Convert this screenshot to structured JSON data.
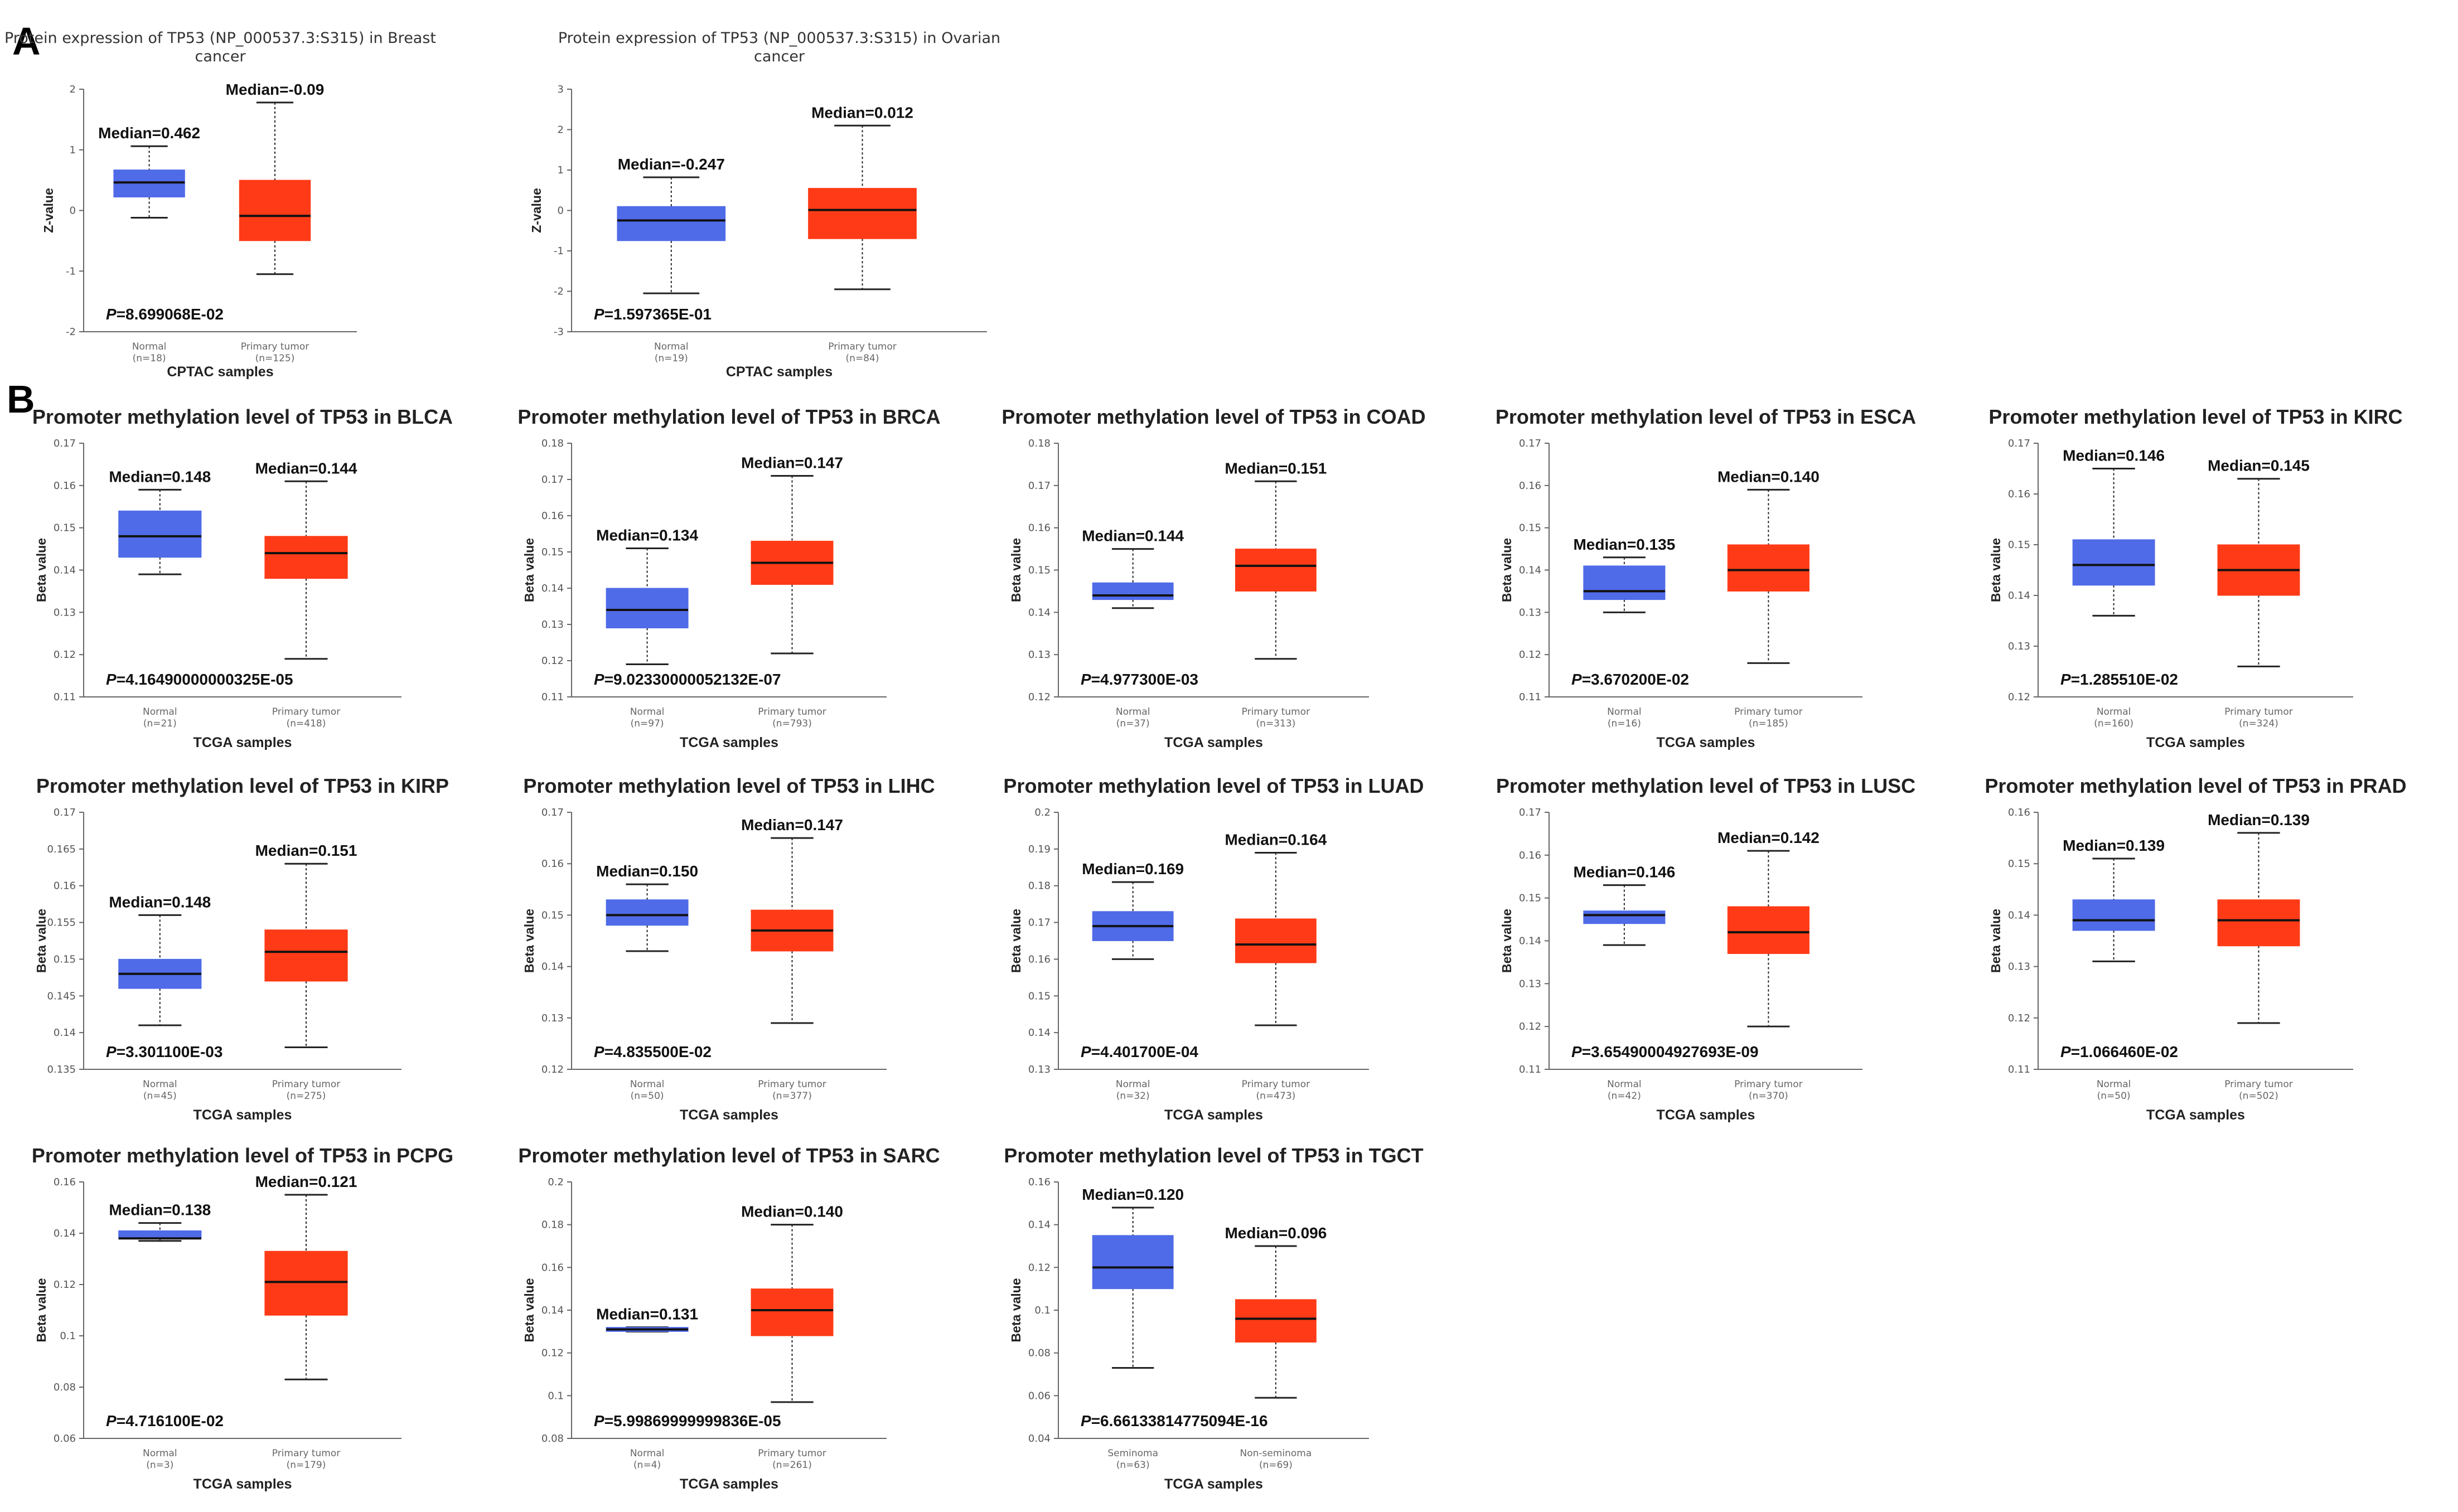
{
  "panels": [
    {
      "label": "A"
    },
    {
      "label": "B"
    }
  ],
  "chart_data": [
    {
      "type": "box",
      "panel": "A",
      "title": "Protein expression of TP53 (NP_000537.3:S315) in Breast cancer",
      "xlabel": "CPTAC samples",
      "ylabel": "Z-value",
      "ylim": [
        -2,
        2
      ],
      "yticks": [
        -2,
        -1,
        0,
        1,
        2
      ],
      "p_value": "8.699068E-02",
      "series": [
        {
          "name": "Normal",
          "n": "(n=18)",
          "color": "#4F6BE8",
          "median": 0.462,
          "median_label": "Median=0.462",
          "q1": 0.22,
          "q3": 0.67,
          "whisker_low": -0.12,
          "whisker_high": 1.06
        },
        {
          "name": "Primary tumor",
          "n": "(n=125)",
          "color": "#FF3B17",
          "median": -0.09,
          "median_label": "Median=-0.09",
          "q1": -0.5,
          "q3": 0.5,
          "whisker_low": -1.05,
          "whisker_high": 1.78
        }
      ]
    },
    {
      "type": "box",
      "panel": "A",
      "title": "Protein expression of TP53 (NP_000537.3:S315) in Ovarian cancer",
      "xlabel": "CPTAC samples",
      "ylabel": "Z-value",
      "ylim": [
        -3,
        3
      ],
      "yticks": [
        -3,
        -2,
        -1,
        0,
        1,
        2,
        3
      ],
      "p_value": "1.597365E-01",
      "series": [
        {
          "name": "Normal",
          "n": "(n=19)",
          "color": "#4F6BE8",
          "median": -0.247,
          "median_label": "Median=-0.247",
          "q1": -0.75,
          "q3": 0.1,
          "whisker_low": -2.05,
          "whisker_high": 0.82
        },
        {
          "name": "Primary tumor",
          "n": "(n=84)",
          "color": "#FF3B17",
          "median": 0.012,
          "median_label": "Median=0.012",
          "q1": -0.7,
          "q3": 0.55,
          "whisker_low": -1.95,
          "whisker_high": 2.1
        }
      ]
    },
    {
      "type": "box",
      "panel": "B",
      "title": "Promoter methylation level of TP53 in BLCA",
      "xlabel": "TCGA samples",
      "ylabel": "Beta value",
      "ylim": [
        0.11,
        0.17
      ],
      "yticks": [
        0.11,
        0.12,
        0.13,
        0.14,
        0.15,
        0.16,
        0.17
      ],
      "p_value": "4.16490000000325E-05",
      "series": [
        {
          "name": "Normal",
          "n": "(n=21)",
          "color": "#4F6BE8",
          "median": 0.148,
          "median_label": "Median=0.148",
          "q1": 0.143,
          "q3": 0.154,
          "whisker_low": 0.139,
          "whisker_high": 0.159
        },
        {
          "name": "Primary tumor",
          "n": "(n=418)",
          "color": "#FF3B17",
          "median": 0.144,
          "median_label": "Median=0.144",
          "q1": 0.138,
          "q3": 0.148,
          "whisker_low": 0.119,
          "whisker_high": 0.161
        }
      ]
    },
    {
      "type": "box",
      "panel": "B",
      "title": "Promoter methylation level of TP53 in BRCA",
      "xlabel": "TCGA samples",
      "ylabel": "Beta value",
      "ylim": [
        0.11,
        0.18
      ],
      "yticks": [
        0.11,
        0.12,
        0.13,
        0.14,
        0.15,
        0.16,
        0.17,
        0.18
      ],
      "p_value": "9.02330000052132E-07",
      "series": [
        {
          "name": "Normal",
          "n": "(n=97)",
          "color": "#4F6BE8",
          "median": 0.134,
          "median_label": "Median=0.134",
          "q1": 0.129,
          "q3": 0.14,
          "whisker_low": 0.119,
          "whisker_high": 0.151
        },
        {
          "name": "Primary tumor",
          "n": "(n=793)",
          "color": "#FF3B17",
          "median": 0.147,
          "median_label": "Median=0.147",
          "q1": 0.141,
          "q3": 0.153,
          "whisker_low": 0.122,
          "whisker_high": 0.171
        }
      ]
    },
    {
      "type": "box",
      "panel": "B",
      "title": "Promoter methylation level of TP53 in COAD",
      "xlabel": "TCGA samples",
      "ylabel": "Beta value",
      "ylim": [
        0.12,
        0.18
      ],
      "yticks": [
        0.12,
        0.13,
        0.14,
        0.15,
        0.16,
        0.17,
        0.18
      ],
      "p_value": "4.977300E-03",
      "series": [
        {
          "name": "Normal",
          "n": "(n=37)",
          "color": "#4F6BE8",
          "median": 0.144,
          "median_label": "Median=0.144",
          "q1": 0.143,
          "q3": 0.147,
          "whisker_low": 0.141,
          "whisker_high": 0.155
        },
        {
          "name": "Primary tumor",
          "n": "(n=313)",
          "color": "#FF3B17",
          "median": 0.151,
          "median_label": "Median=0.151",
          "q1": 0.145,
          "q3": 0.155,
          "whisker_low": 0.129,
          "whisker_high": 0.171
        }
      ]
    },
    {
      "type": "box",
      "panel": "B",
      "title": "Promoter methylation level of TP53 in ESCA",
      "xlabel": "TCGA samples",
      "ylabel": "Beta value",
      "ylim": [
        0.11,
        0.17
      ],
      "yticks": [
        0.11,
        0.12,
        0.13,
        0.14,
        0.15,
        0.16,
        0.17
      ],
      "p_value": "3.670200E-02",
      "series": [
        {
          "name": "Normal",
          "n": "(n=16)",
          "color": "#4F6BE8",
          "median": 0.135,
          "median_label": "Median=0.135",
          "q1": 0.133,
          "q3": 0.141,
          "whisker_low": 0.13,
          "whisker_high": 0.143
        },
        {
          "name": "Primary tumor",
          "n": "(n=185)",
          "color": "#FF3B17",
          "median": 0.14,
          "median_label": "Median=0.140",
          "q1": 0.135,
          "q3": 0.146,
          "whisker_low": 0.118,
          "whisker_high": 0.159
        }
      ]
    },
    {
      "type": "box",
      "panel": "B",
      "title": "Promoter methylation level of TP53 in KIRC",
      "xlabel": "TCGA samples",
      "ylabel": "Beta value",
      "ylim": [
        0.12,
        0.17
      ],
      "yticks": [
        0.12,
        0.13,
        0.14,
        0.15,
        0.16,
        0.17
      ],
      "p_value": "1.285510E-02",
      "series": [
        {
          "name": "Normal",
          "n": "(n=160)",
          "color": "#4F6BE8",
          "median": 0.146,
          "median_label": "Median=0.146",
          "q1": 0.142,
          "q3": 0.151,
          "whisker_low": 0.136,
          "whisker_high": 0.165
        },
        {
          "name": "Primary tumor",
          "n": "(n=324)",
          "color": "#FF3B17",
          "median": 0.145,
          "median_label": "Median=0.145",
          "q1": 0.14,
          "q3": 0.15,
          "whisker_low": 0.126,
          "whisker_high": 0.163
        }
      ]
    },
    {
      "type": "box",
      "panel": "B",
      "title": "Promoter methylation level of TP53 in KIRP",
      "xlabel": "TCGA samples",
      "ylabel": "Beta value",
      "ylim": [
        0.135,
        0.17
      ],
      "yticks": [
        0.135,
        0.14,
        0.145,
        0.15,
        0.155,
        0.16,
        0.165,
        0.17
      ],
      "p_value": "3.301100E-03",
      "series": [
        {
          "name": "Normal",
          "n": "(n=45)",
          "color": "#4F6BE8",
          "median": 0.148,
          "median_label": "Median=0.148",
          "q1": 0.146,
          "q3": 0.15,
          "whisker_low": 0.141,
          "whisker_high": 0.156
        },
        {
          "name": "Primary tumor",
          "n": "(n=275)",
          "color": "#FF3B17",
          "median": 0.151,
          "median_label": "Median=0.151",
          "q1": 0.147,
          "q3": 0.154,
          "whisker_low": 0.138,
          "whisker_high": 0.163
        }
      ]
    },
    {
      "type": "box",
      "panel": "B",
      "title": "Promoter methylation level of TP53 in LIHC",
      "xlabel": "TCGA samples",
      "ylabel": "Beta value",
      "ylim": [
        0.12,
        0.17
      ],
      "yticks": [
        0.12,
        0.13,
        0.14,
        0.15,
        0.16,
        0.17
      ],
      "p_value": "4.835500E-02",
      "series": [
        {
          "name": "Normal",
          "n": "(n=50)",
          "color": "#4F6BE8",
          "median": 0.15,
          "median_label": "Median=0.150",
          "q1": 0.148,
          "q3": 0.153,
          "whisker_low": 0.143,
          "whisker_high": 0.156
        },
        {
          "name": "Primary tumor",
          "n": "(n=377)",
          "color": "#FF3B17",
          "median": 0.147,
          "median_label": "Median=0.147",
          "q1": 0.143,
          "q3": 0.151,
          "whisker_low": 0.129,
          "whisker_high": 0.165
        }
      ]
    },
    {
      "type": "box",
      "panel": "B",
      "title": "Promoter methylation level of TP53 in LUAD",
      "xlabel": "TCGA samples",
      "ylabel": "Beta value",
      "ylim": [
        0.13,
        0.2
      ],
      "yticks": [
        0.13,
        0.14,
        0.15,
        0.16,
        0.17,
        0.18,
        0.19,
        0.2
      ],
      "p_value": "4.401700E-04",
      "series": [
        {
          "name": "Normal",
          "n": "(n=32)",
          "color": "#4F6BE8",
          "median": 0.169,
          "median_label": "Median=0.169",
          "q1": 0.165,
          "q3": 0.173,
          "whisker_low": 0.16,
          "whisker_high": 0.181
        },
        {
          "name": "Primary tumor",
          "n": "(n=473)",
          "color": "#FF3B17",
          "median": 0.164,
          "median_label": "Median=0.164",
          "q1": 0.159,
          "q3": 0.171,
          "whisker_low": 0.142,
          "whisker_high": 0.189
        }
      ]
    },
    {
      "type": "box",
      "panel": "B",
      "title": "Promoter methylation level of TP53 in LUSC",
      "xlabel": "TCGA samples",
      "ylabel": "Beta value",
      "ylim": [
        0.11,
        0.17
      ],
      "yticks": [
        0.11,
        0.12,
        0.13,
        0.14,
        0.15,
        0.16,
        0.17
      ],
      "p_value": "3.65490004927693E-09",
      "series": [
        {
          "name": "Normal",
          "n": "(n=42)",
          "color": "#4F6BE8",
          "median": 0.146,
          "median_label": "Median=0.146",
          "q1": 0.144,
          "q3": 0.147,
          "whisker_low": 0.139,
          "whisker_high": 0.153
        },
        {
          "name": "Primary tumor",
          "n": "(n=370)",
          "color": "#FF3B17",
          "median": 0.142,
          "median_label": "Median=0.142",
          "q1": 0.137,
          "q3": 0.148,
          "whisker_low": 0.12,
          "whisker_high": 0.161
        }
      ]
    },
    {
      "type": "box",
      "panel": "B",
      "title": "Promoter methylation level of TP53 in PRAD",
      "xlabel": "TCGA samples",
      "ylabel": "Beta value",
      "ylim": [
        0.11,
        0.16
      ],
      "yticks": [
        0.11,
        0.12,
        0.13,
        0.14,
        0.15,
        0.16
      ],
      "p_value": "1.066460E-02",
      "series": [
        {
          "name": "Normal",
          "n": "(n=50)",
          "color": "#4F6BE8",
          "median": 0.139,
          "median_label": "Median=0.139",
          "q1": 0.137,
          "q3": 0.143,
          "whisker_low": 0.131,
          "whisker_high": 0.151
        },
        {
          "name": "Primary tumor",
          "n": "(n=502)",
          "color": "#FF3B17",
          "median": 0.139,
          "median_label": "Median=0.139",
          "q1": 0.134,
          "q3": 0.143,
          "whisker_low": 0.119,
          "whisker_high": 0.156
        }
      ]
    },
    {
      "type": "box",
      "panel": "B",
      "title": "Promoter methylation level of TP53 in PCPG",
      "xlabel": "TCGA samples",
      "ylabel": "Beta value",
      "ylim": [
        0.06,
        0.16
      ],
      "yticks": [
        0.06,
        0.08,
        0.1,
        0.12,
        0.14,
        0.16
      ],
      "p_value": "4.716100E-02",
      "series": [
        {
          "name": "Normal",
          "n": "(n=3)",
          "color": "#4F6BE8",
          "median": 0.138,
          "median_label": "Median=0.138",
          "q1": 0.138,
          "q3": 0.141,
          "whisker_low": 0.137,
          "whisker_high": 0.144
        },
        {
          "name": "Primary tumor",
          "n": "(n=179)",
          "color": "#FF3B17",
          "median": 0.121,
          "median_label": "Median=0.121",
          "q1": 0.108,
          "q3": 0.133,
          "whisker_low": 0.083,
          "whisker_high": 0.155
        }
      ]
    },
    {
      "type": "box",
      "panel": "B",
      "title": "Promoter methylation level of TP53 in SARC",
      "xlabel": "TCGA samples",
      "ylabel": "Beta value",
      "ylim": [
        0.08,
        0.2
      ],
      "yticks": [
        0.08,
        0.1,
        0.12,
        0.14,
        0.16,
        0.18,
        0.2
      ],
      "p_value": "5.99869999999836E-05",
      "series": [
        {
          "name": "Normal",
          "n": "(n=4)",
          "color": "#4F6BE8",
          "median": 0.131,
          "median_label": "Median=0.131",
          "q1": 0.13,
          "q3": 0.132,
          "whisker_low": 0.13,
          "whisker_high": 0.132
        },
        {
          "name": "Primary tumor",
          "n": "(n=261)",
          "color": "#FF3B17",
          "median": 0.14,
          "median_label": "Median=0.140",
          "q1": 0.128,
          "q3": 0.15,
          "whisker_low": 0.097,
          "whisker_high": 0.18
        }
      ]
    },
    {
      "type": "box",
      "panel": "B",
      "title": "Promoter methylation level of TP53 in TGCT",
      "xlabel": "TCGA samples",
      "ylabel": "Beta value",
      "ylim": [
        0.04,
        0.16
      ],
      "yticks": [
        0.04,
        0.06,
        0.08,
        0.1,
        0.12,
        0.14,
        0.16
      ],
      "p_value": "6.66133814775094E-16",
      "series": [
        {
          "name": "Seminoma",
          "n": "(n=63)",
          "color": "#4F6BE8",
          "median": 0.12,
          "median_label": "Median=0.120",
          "q1": 0.11,
          "q3": 0.135,
          "whisker_low": 0.073,
          "whisker_high": 0.148
        },
        {
          "name": "Non-seminoma",
          "n": "(n=69)",
          "color": "#FF3B17",
          "median": 0.096,
          "median_label": "Median=0.096",
          "q1": 0.085,
          "q3": 0.105,
          "whisker_low": 0.059,
          "whisker_high": 0.13
        }
      ]
    }
  ]
}
